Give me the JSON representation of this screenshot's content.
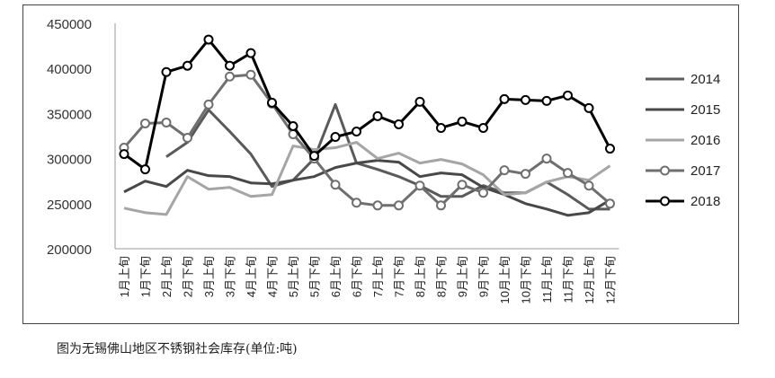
{
  "caption": "图为无锡佛山地区不锈钢社会库存(单位:吨)",
  "colors": {
    "2014": "#5a5a5a",
    "2015": "#484848",
    "2016": "#a5a5a5",
    "2017": "#6f6f6f",
    "2018": "#000000"
  },
  "chart_data": {
    "type": "line",
    "title": "",
    "xlabel": "",
    "ylabel": "",
    "ylim": [
      200000,
      450000
    ],
    "yticks": [
      "450000",
      "400000",
      "350000",
      "300000",
      "250000",
      "200000"
    ],
    "grid": false,
    "legend_position": "right",
    "categories": [
      "1月上旬",
      "1月下旬",
      "2月上旬",
      "2月下旬",
      "3月上旬",
      "3月下旬",
      "4月上旬",
      "4月下旬",
      "5月上旬",
      "5月下旬",
      "6月上旬",
      "6月下旬",
      "7月上旬",
      "7月下旬",
      "8月上旬",
      "8月下旬",
      "9月上旬",
      "9月下旬",
      "10月上旬",
      "10月下旬",
      "11月上旬",
      "11月下旬",
      "12月上旬",
      "12月下旬"
    ],
    "series": [
      {
        "name": "2014",
        "marker": false,
        "values": [
          null,
          null,
          302000,
          318000,
          354000,
          330000,
          305000,
          269000,
          276000,
          300000,
          360000,
          295000,
          288000,
          280000,
          270000,
          258000,
          258000,
          270000,
          262000,
          262000,
          274000,
          260000,
          244000,
          244000
        ]
      },
      {
        "name": "2015",
        "marker": false,
        "values": [
          263000,
          275000,
          269000,
          287000,
          281000,
          280000,
          273000,
          272000,
          276000,
          280000,
          290000,
          295000,
          298000,
          296000,
          280000,
          284000,
          282000,
          268000,
          260000,
          250000,
          244000,
          237000,
          240000,
          254000
        ]
      },
      {
        "name": "2016",
        "marker": false,
        "values": [
          245000,
          240000,
          238000,
          280000,
          266000,
          268000,
          258000,
          260000,
          314000,
          310000,
          312000,
          318000,
          300000,
          306000,
          295000,
          299000,
          294000,
          282000,
          260000,
          262000,
          274000,
          280000,
          276000,
          292000
        ]
      },
      {
        "name": "2017",
        "marker": true,
        "values": [
          312000,
          339000,
          340000,
          323000,
          360000,
          391000,
          393000,
          361000,
          327000,
          300000,
          271000,
          251000,
          248000,
          248000,
          270000,
          248000,
          271000,
          262000,
          287000,
          283000,
          300000,
          284000,
          270000,
          250000
        ]
      },
      {
        "name": "2018",
        "marker": true,
        "values": [
          305000,
          288000,
          396000,
          403000,
          432000,
          403000,
          417000,
          362000,
          336000,
          303000,
          324000,
          330000,
          347000,
          338000,
          363000,
          334000,
          341000,
          334000,
          366000,
          365000,
          364000,
          370000,
          356000,
          311000
        ]
      }
    ]
  }
}
